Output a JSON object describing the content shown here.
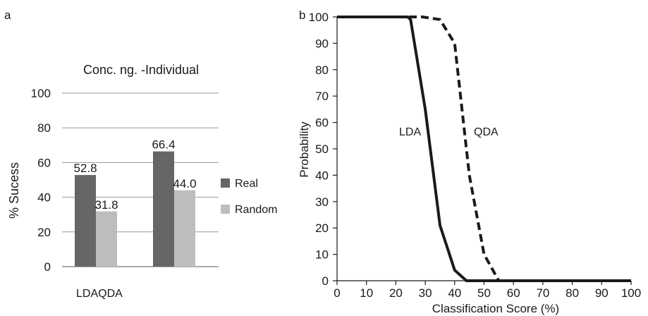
{
  "chart_data": [
    {
      "panel_label": "a",
      "type": "bar",
      "title": "Conc. ng. -Individual",
      "xlabel": "LDAQDA",
      "ylabel": "% Sucess",
      "ylim": [
        0,
        100
      ],
      "yticks": [
        "0",
        "20",
        "40",
        "60",
        "80",
        "100"
      ],
      "grid": true,
      "legend": "right",
      "categories": [
        "LDA",
        "QDA"
      ],
      "series": [
        {
          "name": "Real",
          "color": "#666666",
          "values": [
            52.8,
            66.4
          ],
          "labels": [
            "52.8",
            "66.4"
          ]
        },
        {
          "name": "Random",
          "color": "#bdbdbd",
          "values": [
            31.8,
            44.0
          ],
          "labels": [
            "31.8",
            "44.0"
          ]
        }
      ]
    },
    {
      "panel_label": "b",
      "type": "line",
      "xlabel": "Classification Score (%)",
      "ylabel": "Probability",
      "xlim": [
        0,
        100
      ],
      "ylim": [
        0,
        100
      ],
      "xticks": [
        "0",
        "10",
        "20",
        "30",
        "40",
        "50",
        "60",
        "70",
        "80",
        "90",
        "100"
      ],
      "yticks": [
        "0",
        "10",
        "20",
        "30",
        "40",
        "50",
        "60",
        "70",
        "80",
        "90",
        "100"
      ],
      "grid": false,
      "series": [
        {
          "name": "LDA",
          "style": "solid",
          "color": "#1a1a1a",
          "x": [
            0,
            24,
            25,
            30,
            35,
            40,
            44,
            100
          ],
          "y": [
            100,
            100,
            99,
            65,
            21,
            4,
            0,
            0
          ]
        },
        {
          "name": "QDA",
          "style": "dashed",
          "color": "#1a1a1a",
          "x": [
            0,
            29,
            35,
            40,
            45,
            50,
            55,
            100
          ],
          "y": [
            100,
            100,
            99,
            90,
            40,
            10,
            0,
            0
          ]
        }
      ]
    }
  ]
}
